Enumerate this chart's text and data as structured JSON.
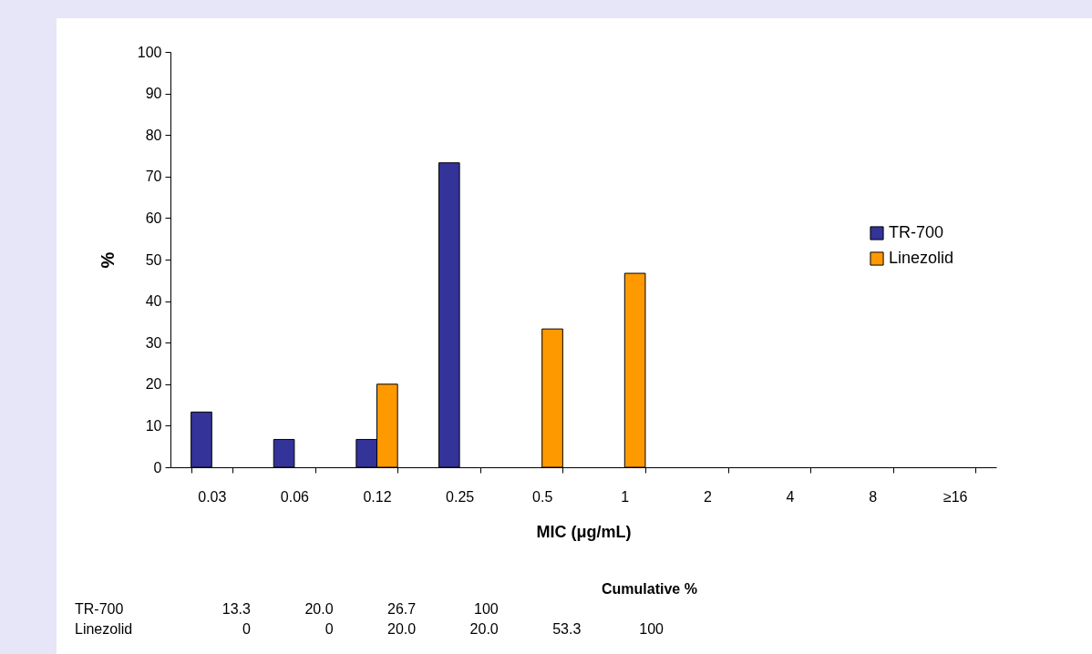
{
  "chart_data": {
    "type": "bar",
    "xlabel": "MIC (μg/mL)",
    "ylabel": "%",
    "categories": [
      "0.03",
      "0.06",
      "0.12",
      "0.25",
      "0.5",
      "1",
      "2",
      "4",
      "8",
      "≥16"
    ],
    "series": [
      {
        "name": "TR-700",
        "color": "#333399",
        "values": [
          13.3,
          6.7,
          6.7,
          73.3,
          0,
          0,
          0,
          0,
          0,
          0
        ]
      },
      {
        "name": "Linezolid",
        "color": "#ff9900",
        "values": [
          0,
          0,
          20,
          0,
          33.3,
          46.7,
          0,
          0,
          0,
          0
        ]
      }
    ],
    "ylim": [
      0,
      100
    ],
    "yticks": [
      0,
      10,
      20,
      30,
      40,
      50,
      60,
      70,
      80,
      90,
      100
    ],
    "grid": false,
    "legend": "right",
    "annotations": [
      "Cumulative %",
      "TR-700 13.3 20.0 26.7 100",
      "Linezolid 0 0 20.0 20.0 53.3 100"
    ]
  }
}
